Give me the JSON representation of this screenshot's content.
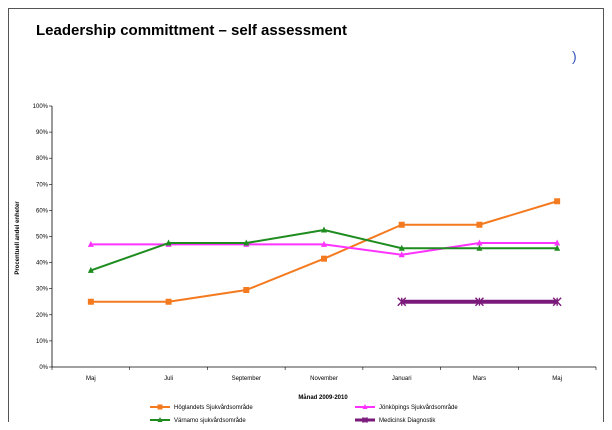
{
  "title": "Leadership committment – self assessment",
  "paren": ")",
  "chart_data": {
    "type": "line",
    "title": "Leadership committment – self assessment",
    "xlabel": "Månad 2009-2010",
    "ylabel": "Procentuell andel enheter",
    "categories": [
      "Maj",
      "Juli",
      "September",
      "November",
      "Januari",
      "Mars",
      "Maj"
    ],
    "yticks": [
      "0%",
      "10%",
      "20%",
      "30%",
      "40%",
      "50%",
      "60%",
      "70%",
      "80%",
      "90%",
      "100%"
    ],
    "ylim": [
      0,
      100
    ],
    "grid": false,
    "legend_placement": "bottom",
    "series": [
      {
        "name": "Höglandets Sjukvårdsområde",
        "color": "#f47a20",
        "marker": "square",
        "values": [
          25,
          25,
          29.5,
          41.5,
          54.5,
          54.5,
          63.5
        ]
      },
      {
        "name": "Jönköpings Sjukvårdsområde",
        "color": "#ff33ff",
        "marker": "triangle",
        "values": [
          47,
          47,
          47,
          47,
          43,
          47.5,
          47.5
        ]
      },
      {
        "name": "Värnamo sjukvårdsområde",
        "color": "#1e8c1e",
        "marker": "triangle",
        "values": [
          37,
          47.5,
          47.5,
          52.5,
          45.5,
          45.5,
          45.5
        ]
      },
      {
        "name": "Medicinsk Diagnostik",
        "color": "#7a1a7a",
        "marker": "x",
        "values": [
          null,
          null,
          null,
          null,
          25,
          25,
          25
        ]
      }
    ]
  }
}
